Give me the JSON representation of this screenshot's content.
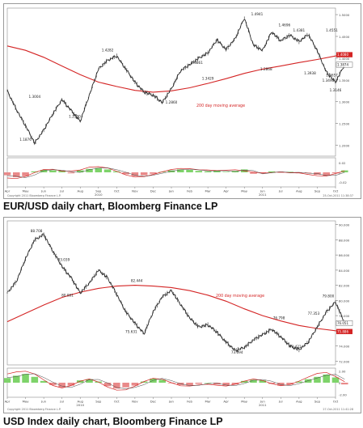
{
  "charts": [
    {
      "caption": "EUR/USD daily chart, Bloomberg Finance LP",
      "copyright": "Copyright 2011 Bloomberg Finance L.P.",
      "timestamp": "25-Oct-2011 11:38:37",
      "ma_label": "200 day moving average",
      "price_tag": "1.3874",
      "ma_tag": "1.4080"
    },
    {
      "caption": "USD Index daily chart, Bloomberg Finance LP",
      "copyright": "Copyright 2011 Bloomberg Finance L.P.",
      "timestamp": "27-Oct-2011 11:41:28",
      "ma_label": "200 day moving average",
      "price_tag": "76.051",
      "ma_tag": "75.886"
    }
  ],
  "colors": {
    "price": "#2b2b2b",
    "ma": "#d42424",
    "hist_positive": "#7ed36a",
    "hist_negative": "#e98a8a",
    "axis_box": "#6b6b6b",
    "label_red": "#d42424"
  },
  "chart_data": [
    {
      "type": "line",
      "title": "EUR/USD daily chart, Bloomberg Finance LP",
      "xlabel": "",
      "ylabel": "",
      "x_ticks": [
        "Apr",
        "May",
        "Jun",
        "Jul",
        "Aug",
        "Sep",
        "Oct",
        "Nov",
        "Dec",
        "Jan",
        "Feb",
        "Mar",
        "Apr",
        "May",
        "Jun",
        "Jul",
        "Aug",
        "Sep",
        "Oct"
      ],
      "x_years": [
        {
          "label": "2010",
          "at_index": 5
        },
        {
          "label": "2011",
          "at_index": 14
        }
      ],
      "ylim": [
        1.175,
        1.515
      ],
      "y_ticks": [
        1.2,
        1.25,
        1.3,
        1.35,
        1.4,
        1.45,
        1.5
      ],
      "grid": false,
      "series": [
        {
          "kind": "price",
          "x": [
            0,
            0.5,
            1.0,
            1.5,
            2.0,
            2.5,
            3.0,
            3.5,
            4.0,
            4.5,
            5.0,
            5.5,
            6.0,
            6.5,
            7.0,
            7.5,
            8.0,
            8.5,
            9.0,
            9.5,
            10.0,
            10.5,
            11.0,
            11.5,
            12.0,
            12.5,
            13.0,
            13.5,
            14.0,
            14.5,
            15.0,
            15.5,
            16.0,
            16.5,
            17.0,
            17.5,
            18.0,
            18.5
          ],
          "y": [
            1.325,
            1.282,
            1.245,
            1.205,
            1.235,
            1.272,
            1.305,
            1.28,
            1.255,
            1.315,
            1.375,
            1.395,
            1.405,
            1.375,
            1.345,
            1.322,
            1.315,
            1.298,
            1.33,
            1.371,
            1.385,
            1.4,
            1.412,
            1.442,
            1.42,
            1.445,
            1.492,
            1.43,
            1.418,
            1.46,
            1.44,
            1.453,
            1.438,
            1.455,
            1.417,
            1.368,
            1.345,
            1.385
          ]
        },
        {
          "kind": "moving_average",
          "x": [
            0,
            1.0,
            2.0,
            3.0,
            4.0,
            5.0,
            6.0,
            7.0,
            8.0,
            9.0,
            10.0,
            11.0,
            12.0,
            13.0,
            14.0,
            15.0,
            16.0,
            17.0,
            18.0,
            18.5
          ],
          "y": [
            1.428,
            1.418,
            1.402,
            1.382,
            1.362,
            1.345,
            1.335,
            1.326,
            1.322,
            1.325,
            1.332,
            1.342,
            1.353,
            1.365,
            1.375,
            1.382,
            1.39,
            1.397,
            1.405,
            1.408
          ]
        }
      ],
      "annotations": [
        {
          "text": "1.3004",
          "x": 1.5,
          "y": 1.303
        },
        {
          "text": "1.1876",
          "x": 1.0,
          "y": 1.205
        },
        {
          "text": "1.2590",
          "x": 3.7,
          "y": 1.258
        },
        {
          "text": "1.4282",
          "x": 5.5,
          "y": 1.41
        },
        {
          "text": "1.3861",
          "x": 10.4,
          "y": 1.381
        },
        {
          "text": "1.3429",
          "x": 11.0,
          "y": 1.345
        },
        {
          "text": "1.2860",
          "x": 9.0,
          "y": 1.29
        },
        {
          "text": "1.4941",
          "x": 13.7,
          "y": 1.493
        },
        {
          "text": "1.4696",
          "x": 15.2,
          "y": 1.468
        },
        {
          "text": "1.4381",
          "x": 16.0,
          "y": 1.456
        },
        {
          "text": "1.4551",
          "x": 17.8,
          "y": 1.456
        },
        {
          "text": "1.2868",
          "x": 14.2,
          "y": 1.366
        },
        {
          "text": "1.3938",
          "x": 16.6,
          "y": 1.357
        },
        {
          "text": "1.3657",
          "x": 17.8,
          "y": 1.352
        },
        {
          "text": "1.3490",
          "x": 17.6,
          "y": 1.34
        },
        {
          "text": "1.3146",
          "x": 18.0,
          "y": 1.318
        }
      ],
      "oscillator": {
        "histogram_x": [
          0,
          0.5,
          1.0,
          1.5,
          2.0,
          2.5,
          3.0,
          3.5,
          4.0,
          4.5,
          5.0,
          5.5,
          6.0,
          6.5,
          7.0,
          7.5,
          8.0,
          8.5,
          9.0,
          9.5,
          10.0,
          10.5,
          11.0,
          11.5,
          12.0,
          12.5,
          13.0,
          13.5,
          14.0,
          14.5,
          15.0,
          15.5,
          16.0,
          16.5,
          17.0,
          17.5,
          18.0,
          18.5
        ],
        "histogram": [
          -0.006,
          -0.01,
          -0.008,
          0.002,
          0.005,
          0.004,
          0.003,
          -0.002,
          0.004,
          0.007,
          0.009,
          0.006,
          0.002,
          -0.004,
          -0.008,
          -0.006,
          -0.003,
          0.001,
          0.004,
          0.006,
          0.005,
          0.003,
          0.002,
          0.004,
          0.001,
          0.003,
          0.006,
          -0.003,
          -0.002,
          0.002,
          -0.001,
          0.001,
          -0.002,
          -0.001,
          -0.005,
          -0.007,
          -0.002,
          0.004
        ],
        "y_ticks": [
          0.02,
          0.0,
          -0.02
        ],
        "ylim": [
          -0.03,
          0.03
        ]
      }
    },
    {
      "type": "line",
      "title": "USD Index daily chart, Bloomberg Finance LP",
      "xlabel": "",
      "ylabel": "",
      "x_ticks": [
        "Apr",
        "May",
        "Jun",
        "Jul",
        "Aug",
        "Sep",
        "Oct",
        "Nov",
        "Dec",
        "Jan",
        "Feb",
        "Mar",
        "Apr",
        "May",
        "Jun",
        "Jul",
        "Aug",
        "Sep",
        "Oct"
      ],
      "x_years": [
        {
          "label": "2010",
          "at_index": 4
        },
        {
          "label": "2011",
          "at_index": 14
        }
      ],
      "ylim": [
        71.5,
        90.5
      ],
      "y_ticks": [
        72,
        74,
        76,
        78,
        80,
        82,
        84,
        86,
        88,
        90
      ],
      "grid": false,
      "series": [
        {
          "kind": "price",
          "x": [
            0,
            0.5,
            1.0,
            1.5,
            2.0,
            2.5,
            3.0,
            3.5,
            4.0,
            4.5,
            5.0,
            5.5,
            6.0,
            6.5,
            7.0,
            7.5,
            8.0,
            8.5,
            9.0,
            9.5,
            10.0,
            10.5,
            11.0,
            11.5,
            12.0,
            12.5,
            13.0,
            13.5,
            14.0,
            14.5,
            15.0,
            15.5,
            16.0,
            16.5,
            17.0,
            17.5,
            18.0,
            18.5
          ],
          "y": [
            81.0,
            82.5,
            85.5,
            88.0,
            88.7,
            86.5,
            84.5,
            83.0,
            81.0,
            82.3,
            84.0,
            83.0,
            80.8,
            78.5,
            77.0,
            75.6,
            78.5,
            80.5,
            81.3,
            79.5,
            77.7,
            76.5,
            76.8,
            75.8,
            74.5,
            73.4,
            73.8,
            74.8,
            75.5,
            76.2,
            75.2,
            74.0,
            73.5,
            74.5,
            76.5,
            78.5,
            79.8,
            77.0
          ]
        },
        {
          "kind": "moving_average",
          "x": [
            0,
            1.0,
            2.0,
            3.0,
            4.0,
            5.0,
            6.0,
            7.0,
            8.0,
            9.0,
            10.0,
            11.0,
            12.0,
            13.0,
            14.0,
            15.0,
            16.0,
            17.0,
            18.0,
            18.5
          ],
          "y": [
            77.2,
            78.3,
            79.4,
            80.4,
            81.1,
            81.6,
            81.9,
            82.0,
            81.9,
            81.7,
            81.3,
            80.7,
            79.9,
            78.9,
            78.0,
            77.3,
            76.7,
            76.3,
            76.0,
            75.9
          ]
        }
      ],
      "annotations": [
        {
          "text": "88.708",
          "x": 1.6,
          "y": 88.7
        },
        {
          "text": "83.039",
          "x": 3.1,
          "y": 84.9
        },
        {
          "text": "80.081",
          "x": 3.3,
          "y": 80.2
        },
        {
          "text": "82.444",
          "x": 7.1,
          "y": 82.1
        },
        {
          "text": "75.631",
          "x": 6.8,
          "y": 75.4
        },
        {
          "text": "73.694",
          "x": 12.6,
          "y": 72.7
        },
        {
          "text": "76.798",
          "x": 14.9,
          "y": 77.2
        },
        {
          "text": "73.421",
          "x": 15.8,
          "y": 73.4
        },
        {
          "text": "77.353",
          "x": 16.8,
          "y": 77.8
        },
        {
          "text": "79.800",
          "x": 17.6,
          "y": 80.1
        }
      ],
      "oscillator": {
        "histogram_x": [
          0,
          0.5,
          1.0,
          1.5,
          2.0,
          2.5,
          3.0,
          3.5,
          4.0,
          4.5,
          5.0,
          5.5,
          6.0,
          6.5,
          7.0,
          7.5,
          8.0,
          8.5,
          9.0,
          9.5,
          10.0,
          10.5,
          11.0,
          11.5,
          12.0,
          12.5,
          13.0,
          13.5,
          14.0,
          14.5,
          15.0,
          15.5,
          16.0,
          16.5,
          17.0,
          17.5,
          18.0,
          18.5
        ],
        "histogram": [
          0.8,
          1.2,
          1.5,
          1.0,
          0.3,
          -0.4,
          -0.8,
          -0.5,
          0.4,
          0.6,
          0.2,
          -0.6,
          -1.0,
          -0.8,
          -0.5,
          0.2,
          0.7,
          0.5,
          -0.1,
          -0.4,
          -0.5,
          -0.2,
          0.0,
          -0.3,
          -0.5,
          -0.3,
          0.3,
          0.5,
          0.4,
          -0.2,
          -0.5,
          -0.3,
          0.2,
          0.6,
          1.0,
          1.4,
          0.9,
          -0.3
        ],
        "y_ticks": [
          2.0,
          0.0,
          -2.0
        ],
        "ylim": [
          -2.5,
          2.5
        ]
      }
    }
  ]
}
